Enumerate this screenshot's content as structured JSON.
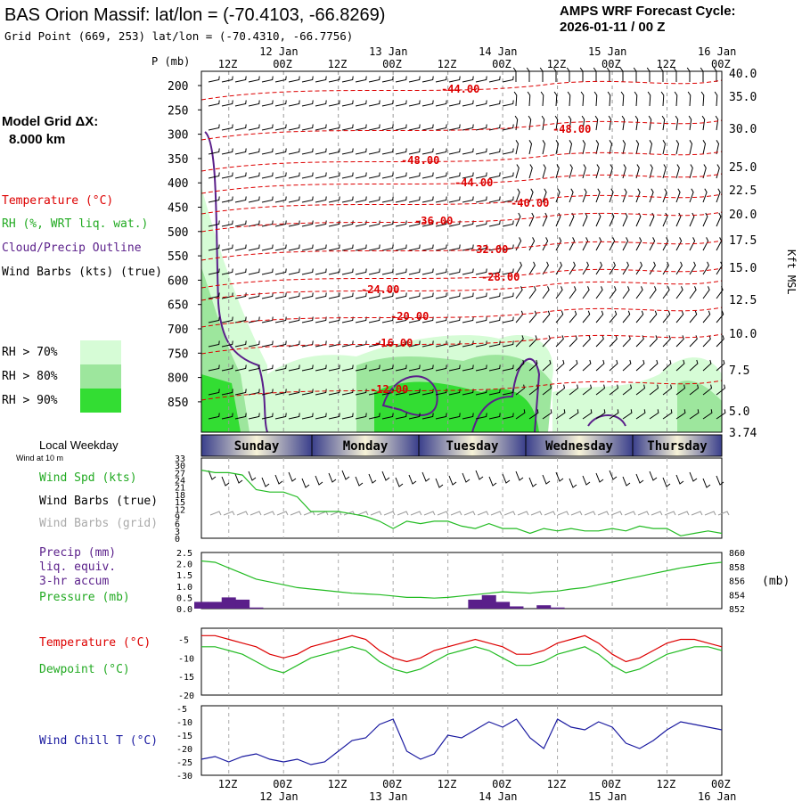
{
  "header": {
    "title": "BAS Orion Massif:  lat/lon = (-70.4103, -66.8269)",
    "subtitle": "Grid Point (669, 253) lat/lon = (-70.4310, -66.7756)",
    "amps_line1": "AMPS WRF Forecast Cycle:",
    "amps_line2": "2026-01-11 / 00  Z"
  },
  "legend": {
    "grid_label": "Model Grid ΔX:",
    "grid_value": "8.000 km",
    "temperature": "Temperature (°C)",
    "rh": "RH (%, WRT liq. wat.)",
    "cloud": "Cloud/Precip Outline",
    "wind": "Wind Barbs (kts) (true)",
    "rh70": "RH > 70%",
    "rh80": "RH > 80%",
    "rh90": "RH > 90%",
    "rh_colors": [
      "#d6fcd6",
      "#9de69d",
      "#33dd33"
    ]
  },
  "axes": {
    "p_label": "P (mb)",
    "kft_label": "Kft MSL",
    "pressure_ticks": [
      "200",
      "250",
      "300",
      "350",
      "400",
      "450",
      "500",
      "550",
      "600",
      "650",
      "700",
      "750",
      "800",
      "850"
    ],
    "height_ticks": [
      "40.0",
      "35.0",
      "30.0",
      "25.0",
      "22.5",
      "20.0",
      "17.5",
      "15.0",
      "12.5",
      "10.0",
      "7.5",
      "5.0",
      "3.74"
    ],
    "time_hours": [
      "12Z",
      "00Z",
      "12Z",
      "00Z",
      "12Z",
      "00Z",
      "12Z",
      "00Z",
      "12Z",
      "00Z"
    ],
    "time_dates": [
      "12 Jan",
      "13 Jan",
      "14 Jan",
      "15 Jan",
      "16 Jan"
    ]
  },
  "weekday": {
    "label": "Local Weekday",
    "days": [
      "Sunday",
      "Monday",
      "Tuesday",
      "Wednesday",
      "Thursday"
    ]
  },
  "panels": {
    "wind10m_note": "Wind at 10 m",
    "windspd_label": "Wind Spd (kts)",
    "barbs_true_label": "Wind Barbs (true)",
    "barbs_grid_label": "Wind Barbs (grid)",
    "precip_label1": "Precip (mm)",
    "precip_label2": "liq. equiv.",
    "precip_label3": "3-hr accum",
    "pressure_label": "Pressure (mb)",
    "pressure_unit": "(mb)",
    "temp_label": "Temperature (°C)",
    "dew_label": "Dewpoint (°C)",
    "windchill_label": "Wind Chill T (°C)",
    "windspd_ticks": [
      "33",
      "30",
      "27",
      "24",
      "21",
      "18",
      "15",
      "12",
      "9",
      "6",
      "3",
      "0"
    ],
    "precip_ticks": [
      "2.5",
      "2.0",
      "1.5",
      "1.0",
      "0.5",
      "0.0"
    ],
    "pressure_ticks": [
      "860",
      "858",
      "856",
      "854",
      "852"
    ],
    "temp_ticks": [
      "-5",
      "-10",
      "-15",
      "-20"
    ],
    "wc_ticks": [
      "-5",
      "-10",
      "-15",
      "-20",
      "-25",
      "-30"
    ]
  },
  "chart_data": {
    "type": "line",
    "x_hours": [
      6,
      9,
      12,
      15,
      18,
      21,
      24,
      27,
      30,
      33,
      36,
      39,
      42,
      45,
      48,
      51,
      54,
      57,
      60,
      63,
      66,
      69,
      72,
      75,
      78,
      81,
      84,
      87,
      90,
      93,
      96,
      99,
      102,
      105,
      108,
      111,
      114,
      117,
      120
    ],
    "temp_contours": [
      "-44.00",
      "-48.00",
      "-48.00",
      "-44.00",
      "-40.00",
      "-36.00",
      "-32.00",
      "-28.00",
      "-24.00",
      "-20.00",
      "-16.00",
      "-12.00"
    ],
    "series": [
      {
        "name": "Wind Spd (kts)",
        "color": "#22bb22",
        "values": [
          28,
          27,
          27,
          26,
          20,
          19,
          19,
          17,
          11,
          11,
          11,
          10,
          9,
          7,
          4,
          7,
          6,
          7,
          7,
          5,
          4,
          6,
          4,
          4,
          2,
          4,
          3,
          4,
          3,
          3,
          4,
          3,
          5,
          4,
          4,
          1,
          2,
          3,
          2
        ]
      },
      {
        "name": "Pressure (mb)",
        "color": "#22bb22",
        "values": [
          858.8,
          858.6,
          857.8,
          857.0,
          856.2,
          855.8,
          855.4,
          855.0,
          854.8,
          854.6,
          854.4,
          854.2,
          854.1,
          854.0,
          853.8,
          853.6,
          853.6,
          853.5,
          853.6,
          853.8,
          854.0,
          854.2,
          854.4,
          854.3,
          854.2,
          854.4,
          854.5,
          854.8,
          855.0,
          855.4,
          855.8,
          856.2,
          856.6,
          857.0,
          857.4,
          857.8,
          858.1,
          858.4,
          858.6
        ]
      },
      {
        "name": "Precip (mm)",
        "color": "#5a1f8a",
        "values": [
          0.3,
          0.3,
          0.5,
          0.4,
          0.05,
          0,
          0,
          0,
          0,
          0,
          0,
          0,
          0,
          0,
          0,
          0,
          0,
          0,
          0,
          0,
          0.4,
          0.6,
          0.3,
          0.1,
          0,
          0.15,
          0.05,
          0,
          0,
          0,
          0,
          0,
          0,
          0,
          0,
          0,
          0,
          0,
          0
        ]
      },
      {
        "name": "Temperature (°C)",
        "color": "#dd0000",
        "values": [
          -4,
          -4,
          -5,
          -6,
          -7,
          -9,
          -10,
          -9,
          -7,
          -6,
          -5,
          -4,
          -5,
          -8,
          -10,
          -11,
          -10,
          -8,
          -7,
          -6,
          -5,
          -6,
          -7,
          -9,
          -9,
          -8,
          -6,
          -5,
          -4,
          -6,
          -9,
          -11,
          -10,
          -8,
          -6,
          -5,
          -5,
          -6,
          -7
        ]
      },
      {
        "name": "Dewpoint (°C)",
        "color": "#22bb22",
        "values": [
          -7,
          -7,
          -8,
          -9,
          -11,
          -13,
          -14,
          -12,
          -10,
          -9,
          -8,
          -7,
          -8,
          -11,
          -13,
          -14,
          -13,
          -11,
          -9,
          -8,
          -7,
          -8,
          -10,
          -12,
          -12,
          -11,
          -9,
          -8,
          -7,
          -9,
          -12,
          -14,
          -13,
          -11,
          -9,
          -8,
          -7,
          -7,
          -8
        ]
      },
      {
        "name": "Wind Chill T (°C)",
        "color": "#1a1aa0",
        "values": [
          -24,
          -23,
          -25,
          -23,
          -22,
          -24,
          -25,
          -24,
          -26,
          -25,
          -21,
          -17,
          -16,
          -11,
          -9,
          -21,
          -24,
          -22,
          -15,
          -16,
          -13,
          -10,
          -12,
          -9,
          -16,
          -20,
          -9,
          -12,
          -13,
          -10,
          -12,
          -18,
          -20,
          -17,
          -13,
          -10,
          -11,
          -12,
          -13
        ]
      }
    ]
  }
}
